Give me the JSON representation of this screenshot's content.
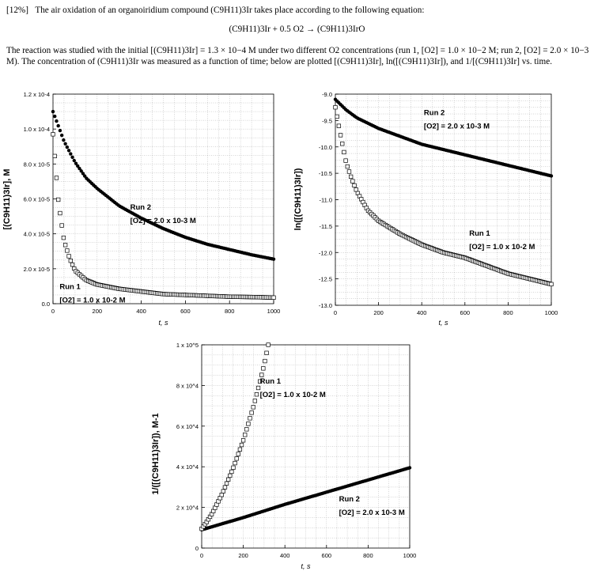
{
  "header": {
    "weight": "[12%]",
    "intro": "The air oxidation of an organoiridium compound (C9H11)3Ir takes place according to the following equation:",
    "equation": "(C9H11)3Ir + 0.5 O2 → (C9H11)3IrO",
    "description": "The reaction was studied with the initial [(C9H11)3Ir] = 1.3 × 10−4 M under two different O2 concentrations (run 1, [O2] = 1.0 × 10−2 M; run 2, [O2] = 2.0 × 10−3 M).  The concentration of (C9H11)3Ir was measured as a function of time; below are plotted [(C9H11)3Ir], ln([(C9H11)3Ir]), and 1/[(C9H11)3Ir] vs. time."
  },
  "chart_data": [
    {
      "type": "scatter",
      "ylabel": "[(C9H11)3Ir], M",
      "xlabel": "t, s",
      "xlim": [
        0,
        1000
      ],
      "ylim": [
        0,
        0.00012
      ],
      "x_ticks": [
        "0",
        "200",
        "400",
        "600",
        "800",
        "1000"
      ],
      "y_ticks": [
        "0.0",
        "2.0 x 10-5",
        "4.0 x 10-5",
        "6.0 x 10-5",
        "8.0 x 10-5",
        "1.0 x 10-4",
        "1.2 x 10-4"
      ],
      "grid": true,
      "series": [
        {
          "name": "Run 2",
          "marker": "filled-circle",
          "condition": "[O2] = 2.0 x 10-3 M",
          "x": [
            0,
            50,
            100,
            150,
            200,
            250,
            300,
            400,
            500,
            600,
            700,
            800,
            900,
            1000
          ],
          "y": [
            0.00011,
            9.3e-05,
            8.1e-05,
            7.2e-05,
            6.6e-05,
            6.1e-05,
            5.6e-05,
            4.9e-05,
            4.3e-05,
            3.8e-05,
            3.4e-05,
            3.1e-05,
            2.8e-05,
            2.55e-05
          ]
        },
        {
          "name": "Run 1",
          "marker": "open-square",
          "condition": "[O2] = 1.0 x 10-2 M",
          "x": [
            0,
            25,
            50,
            75,
            100,
            150,
            200,
            300,
            400,
            500,
            600,
            700,
            800,
            900,
            1000
          ],
          "y": [
            9.7e-05,
            5.8e-05,
            3.6e-05,
            2.6e-05,
            1.9e-05,
            1.35e-05,
            1.1e-05,
            8.5e-06,
            7e-06,
            5.5e-06,
            5e-06,
            4.5e-06,
            4e-06,
            3.8e-06,
            3.5e-06
          ]
        }
      ]
    },
    {
      "type": "scatter",
      "ylabel": "ln([(C9H11)3Ir])",
      "xlabel": "t, s",
      "xlim": [
        0,
        1000
      ],
      "ylim": [
        -13.0,
        -9.0
      ],
      "x_ticks": [
        "0",
        "200",
        "400",
        "600",
        "800",
        "1000"
      ],
      "y_ticks": [
        "-9.0",
        "-9.5",
        "-10.0",
        "-10.5",
        "-11.0",
        "-11.5",
        "-12.0",
        "-12.5",
        "-13.0"
      ],
      "grid": true,
      "series": [
        {
          "name": "Run 2",
          "marker": "filled-circle",
          "condition": "[O2] = 2.0 x 10-3 M",
          "x": [
            0,
            50,
            100,
            200,
            300,
            400,
            500,
            600,
            700,
            800,
            900,
            1000
          ],
          "y": [
            -9.1,
            -9.3,
            -9.45,
            -9.65,
            -9.8,
            -9.95,
            -10.05,
            -10.15,
            -10.25,
            -10.35,
            -10.45,
            -10.55
          ]
        },
        {
          "name": "Run 1",
          "marker": "open-square",
          "condition": "[O2] = 1.0 x 10-2 M",
          "x": [
            0,
            25,
            50,
            75,
            100,
            150,
            200,
            300,
            400,
            500,
            600,
            700,
            800,
            900,
            1000
          ],
          "y": [
            -9.25,
            -9.8,
            -10.3,
            -10.6,
            -10.85,
            -11.2,
            -11.4,
            -11.65,
            -11.85,
            -12.0,
            -12.1,
            -12.25,
            -12.4,
            -12.5,
            -12.6
          ]
        }
      ]
    },
    {
      "type": "scatter",
      "ylabel": "1/([(C9H11)3Ir]), M-1",
      "xlabel": "t, s",
      "xlim": [
        0,
        1000
      ],
      "ylim": [
        0,
        100000
      ],
      "x_ticks": [
        "0",
        "200",
        "400",
        "600",
        "800",
        "1000"
      ],
      "y_ticks": [
        "0",
        "2 x 10^4",
        "4 x 10^4",
        "6 x 10^4",
        "8 x 10^4",
        "1 x 10^5"
      ],
      "grid": true,
      "series": [
        {
          "name": "Run 2",
          "marker": "filled-circle",
          "condition": "[O2] = 2.0 x 10-3 M",
          "x": [
            0,
            200,
            400,
            600,
            800,
            1000
          ],
          "y": [
            9000,
            15000,
            21500,
            27500,
            33500,
            39500
          ]
        },
        {
          "name": "Run 1",
          "marker": "open-square",
          "condition": "[O2] = 1.0 x 10-2 M",
          "x": [
            0,
            25,
            50,
            75,
            100,
            150,
            200,
            250,
            300,
            320
          ],
          "y": [
            9500,
            13000,
            17000,
            22000,
            27000,
            39000,
            53000,
            70000,
            90000,
            100000
          ]
        }
      ]
    }
  ]
}
